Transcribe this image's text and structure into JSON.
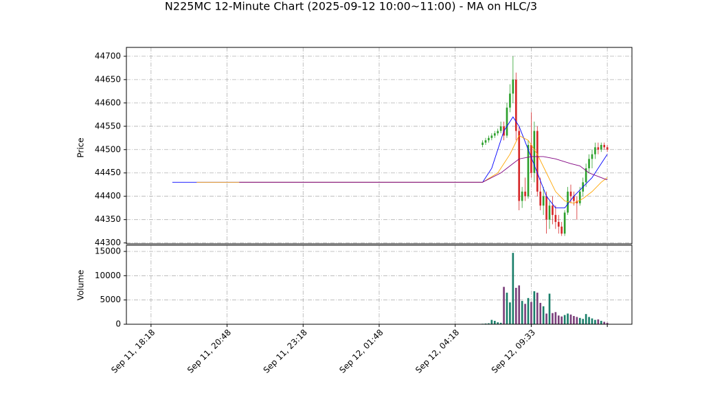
{
  "chart_data": {
    "type": "candlestick",
    "title": "N225MC 12-Minute Chart (2025-09-12 10:00~11:00) - MA on HLC/3",
    "ylabel": "Price",
    "volume_ylabel": "Volume",
    "xlim": [
      -8.1,
      158.1
    ],
    "xticks": [
      {
        "value": 0,
        "label": "Sep 11, 18:18"
      },
      {
        "value": 25,
        "label": "Sep 11, 20:48"
      },
      {
        "value": 50,
        "label": "Sep 11, 23:18"
      },
      {
        "value": 75,
        "label": "Sep 12, 01:48"
      },
      {
        "value": 100,
        "label": "Sep 12, 04:18"
      },
      {
        "value": 125,
        "label": "Sep 12, 09:33"
      },
      {
        "value": 150,
        "label": ""
      }
    ],
    "ylim": [
      44298,
      44719
    ],
    "yticks": [
      44300,
      44350,
      44400,
      44450,
      44500,
      44550,
      44600,
      44650,
      44700
    ],
    "volume_ylim": [
      0,
      16274
    ],
    "volume_yticks": [
      0,
      5000,
      10000,
      15000
    ],
    "grid": true,
    "up_color": "#2ca02c",
    "down_color": "#d62728",
    "volume_up_color": "#1a7f6a",
    "volume_down_color": "#7b3f7b",
    "x": [
      109,
      110,
      111,
      112,
      113,
      114,
      115,
      116,
      117,
      118,
      119,
      120,
      121,
      122,
      123,
      124,
      125,
      126,
      127,
      128,
      129,
      130,
      131,
      132,
      133,
      134,
      135,
      136,
      137,
      138,
      139,
      140,
      141,
      142,
      143,
      144,
      145,
      146,
      147,
      148,
      149,
      150
    ],
    "open": [
      44510,
      44515,
      44520,
      44525,
      44530,
      44535,
      44540,
      44550,
      44530,
      44590,
      44620,
      44650,
      44540,
      44390,
      44410,
      44400,
      44510,
      44450,
      44540,
      44410,
      44380,
      44400,
      44350,
      44380,
      44360,
      44345,
      44335,
      44320,
      44365,
      44410,
      44400,
      44390,
      44385,
      44410,
      44430,
      44460,
      44480,
      44490,
      44505,
      44500,
      44510,
      44505
    ],
    "high": [
      44520,
      44525,
      44530,
      44535,
      44540,
      44545,
      44560,
      44560,
      44600,
      44640,
      44700,
      44665,
      44550,
      44420,
      44440,
      44520,
      44580,
      44560,
      44550,
      44440,
      44420,
      44410,
      44390,
      44400,
      44380,
      44360,
      44345,
      44370,
      44420,
      44425,
      44410,
      44400,
      44420,
      44440,
      44470,
      44490,
      44500,
      44515,
      44515,
      44515,
      44515,
      44510
    ],
    "low": [
      44505,
      44510,
      44515,
      44520,
      44525,
      44530,
      44535,
      44520,
      44525,
      44580,
      44600,
      44520,
      44370,
      44375,
      44390,
      44395,
      44440,
      44430,
      44400,
      44370,
      44360,
      44320,
      44330,
      44340,
      44330,
      44320,
      44315,
      44315,
      44360,
      44385,
      44380,
      44350,
      44380,
      44400,
      44420,
      44450,
      44460,
      44480,
      44490,
      44495,
      44500,
      44495
    ],
    "close": [
      44515,
      44520,
      44525,
      44530,
      44535,
      44540,
      44550,
      44530,
      44590,
      44620,
      44650,
      44540,
      44390,
      44410,
      44400,
      44510,
      44450,
      44540,
      44410,
      44380,
      44400,
      44350,
      44380,
      44360,
      44345,
      44335,
      44320,
      44365,
      44410,
      44400,
      44390,
      44385,
      44410,
      44430,
      44460,
      44480,
      44490,
      44505,
      44500,
      44510,
      44505,
      44500
    ],
    "volume": [
      100,
      150,
      200,
      900,
      700,
      400,
      300,
      7700,
      6500,
      4500,
      14700,
      7500,
      8000,
      4800,
      4200,
      5400,
      4600,
      6800,
      6500,
      4400,
      3700,
      2200,
      6300,
      2300,
      2500,
      1800,
      1600,
      1900,
      2200,
      2000,
      1700,
      1500,
      1300,
      1100,
      2100,
      1500,
      1200,
      900,
      1000,
      700,
      500,
      300
    ],
    "series": [
      {
        "color": "#0000ff",
        "x": [
          7,
          109,
          112,
          116,
          119,
          121,
          124,
          127,
          130,
          133,
          136,
          139,
          142,
          145,
          148,
          150
        ],
        "values": [
          44430,
          44430,
          44460,
          44540,
          44570,
          44550,
          44500,
          44450,
          44400,
          44375,
          44375,
          44400,
          44420,
          44440,
          44470,
          44490
        ]
      },
      {
        "color": "#ffa500",
        "x": [
          15,
          109,
          114,
          118,
          121,
          124,
          127,
          130,
          133,
          136,
          139,
          142,
          145,
          148,
          150
        ],
        "values": [
          44430,
          44430,
          44450,
          44490,
          44530,
          44520,
          44490,
          44450,
          44410,
          44390,
          44385,
          44395,
          44410,
          44430,
          44440
        ]
      },
      {
        "color": "#800080",
        "x": [
          29,
          109,
          115,
          119,
          121,
          125,
          129,
          133,
          138,
          141,
          144,
          148,
          150
        ],
        "values": [
          44430,
          44430,
          44450,
          44470,
          44480,
          44485,
          44485,
          44480,
          44470,
          44465,
          44450,
          44440,
          44435
        ]
      }
    ]
  }
}
